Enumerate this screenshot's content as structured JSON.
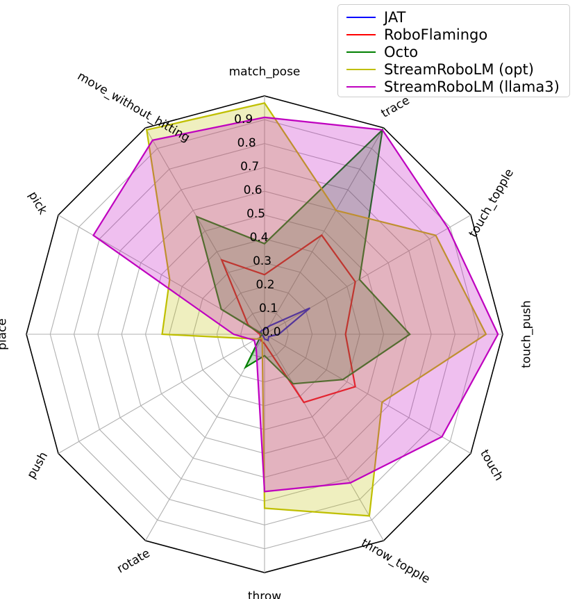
{
  "chart_data": {
    "type": "radar",
    "categories": [
      "match_pose",
      "trace",
      "touch_topple",
      "touch_push",
      "touch",
      "throw_topple",
      "throw",
      "rotate",
      "push",
      "place",
      "pick",
      "move_without_hitting"
    ],
    "radial_ticks": [
      0.0,
      0.1,
      0.2,
      0.3,
      0.4,
      0.5,
      0.6,
      0.7,
      0.8,
      0.9
    ],
    "radial_tick_labels": [
      "0.0",
      "0.1",
      "0.2",
      "0.3",
      "0.4",
      "0.5",
      "0.6",
      "0.7",
      "0.8",
      "0.9"
    ],
    "rlim": [
      0.0,
      1.0
    ],
    "grid": true,
    "legend_position": "top-right",
    "series": [
      {
        "name": "JAT",
        "color": "#0000ff",
        "fill": false,
        "values": [
          0.02,
          0.04,
          0.22,
          0.06,
          0.02,
          0.03,
          0.02,
          0.01,
          0.01,
          0.01,
          0.02,
          0.02
        ]
      },
      {
        "name": "RoboFlamingo",
        "color": "#ff0000",
        "fill": false,
        "values": [
          0.25,
          0.48,
          0.44,
          0.34,
          0.44,
          0.33,
          0.04,
          0.03,
          0.02,
          0.02,
          0.08,
          0.36
        ]
      },
      {
        "name": "Octo",
        "color": "#008000",
        "fill": true,
        "values": [
          0.38,
          0.99,
          0.46,
          0.61,
          0.38,
          0.24,
          0.09,
          0.16,
          0.02,
          0.01,
          0.21,
          0.57
        ]
      },
      {
        "name": "StreamRoboLM (opt)",
        "color": "#bfbf00",
        "fill": true,
        "values": [
          0.97,
          0.6,
          0.83,
          0.93,
          0.57,
          0.88,
          0.73,
          0.02,
          0.04,
          0.43,
          0.46,
          0.99
        ]
      },
      {
        "name": "StreamRoboLM (llama3)",
        "color": "#bf00bf",
        "fill": true,
        "values": [
          0.91,
          0.99,
          0.89,
          0.98,
          0.86,
          0.72,
          0.66,
          0.07,
          0.05,
          0.13,
          0.83,
          0.94
        ]
      }
    ]
  }
}
